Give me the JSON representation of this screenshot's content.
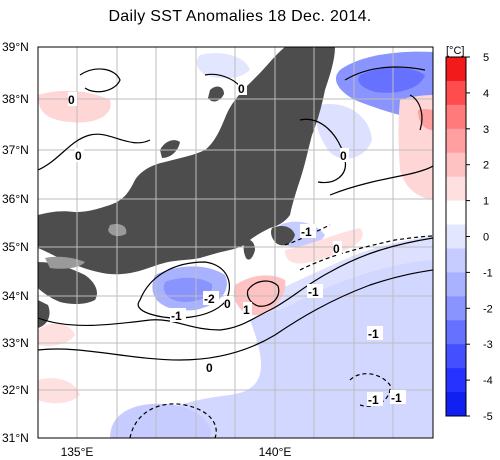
{
  "title": "Daily SST Anomalies 18 Dec. 2014.",
  "colorbar": {
    "unit": "[°C]",
    "ticks": [
      "5",
      "4",
      "3",
      "2",
      "1",
      "0",
      "-1",
      "-2",
      "-3",
      "-4",
      "-5"
    ],
    "colors_top_to_bottom": [
      "#f21a1a",
      "#ff4d4d",
      "#ff7b7b",
      "#ff9f9f",
      "#ffc2c2",
      "#ffe0e0",
      "#ffffff",
      "#e3e6ff",
      "#c6ccff",
      "#a9b2ff",
      "#8a94ff",
      "#6672ff",
      "#4450ff",
      "#2632ff",
      "#1020f0"
    ]
  },
  "axes": {
    "lat_labels": [
      "39°N",
      "38°N",
      "37°N",
      "36°N",
      "35°N",
      "34°N",
      "33°N",
      "32°N",
      "31°N"
    ],
    "lon_labels": [
      "135°E",
      "140°E"
    ],
    "lat_range": [
      31,
      39
    ],
    "lon_range": [
      133.5,
      143.5
    ]
  },
  "contour_labels": [
    "0",
    "0",
    "0",
    "0",
    "0",
    "-1",
    "-1",
    "-1",
    "-1",
    "-1",
    "-1",
    "-2",
    "0",
    "1",
    "0"
  ],
  "colors": {
    "land": "#4d4d4d",
    "background_sea": "#ffffff",
    "grid": "#bdbdbd",
    "contour": "#000000"
  }
}
